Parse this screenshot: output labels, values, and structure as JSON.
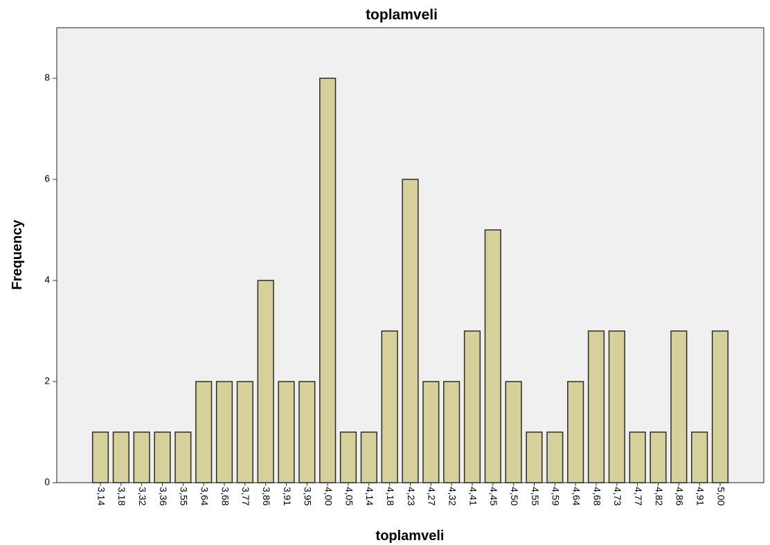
{
  "chart_data": {
    "type": "bar",
    "title": "toplamveli",
    "xlabel": "toplamveli",
    "ylabel": "Frequency",
    "categories": [
      "3,14",
      "3,18",
      "3,32",
      "3,36",
      "3,55",
      "3,64",
      "3,68",
      "3,77",
      "3,86",
      "3,91",
      "3,95",
      "4,00",
      "4,05",
      "4,14",
      "4,18",
      "4,23",
      "4,27",
      "4,32",
      "4,41",
      "4,45",
      "4,50",
      "4,55",
      "4,59",
      "4,64",
      "4,68",
      "4,73",
      "4,77",
      "4,82",
      "4,86",
      "4,91",
      "5,00"
    ],
    "values": [
      1,
      1,
      1,
      1,
      1,
      2,
      2,
      2,
      4,
      2,
      2,
      8,
      1,
      1,
      3,
      6,
      2,
      2,
      3,
      5,
      2,
      1,
      1,
      2,
      3,
      3,
      1,
      1,
      3,
      1,
      3
    ],
    "ylim": [
      0,
      9
    ],
    "yticks": [
      0,
      2,
      4,
      6,
      8
    ],
    "grid": false,
    "colors": {
      "plot_background": "#f0f0f0",
      "bar_fill": "#d6d09a",
      "bar_stroke": "#2a2a2a"
    }
  }
}
